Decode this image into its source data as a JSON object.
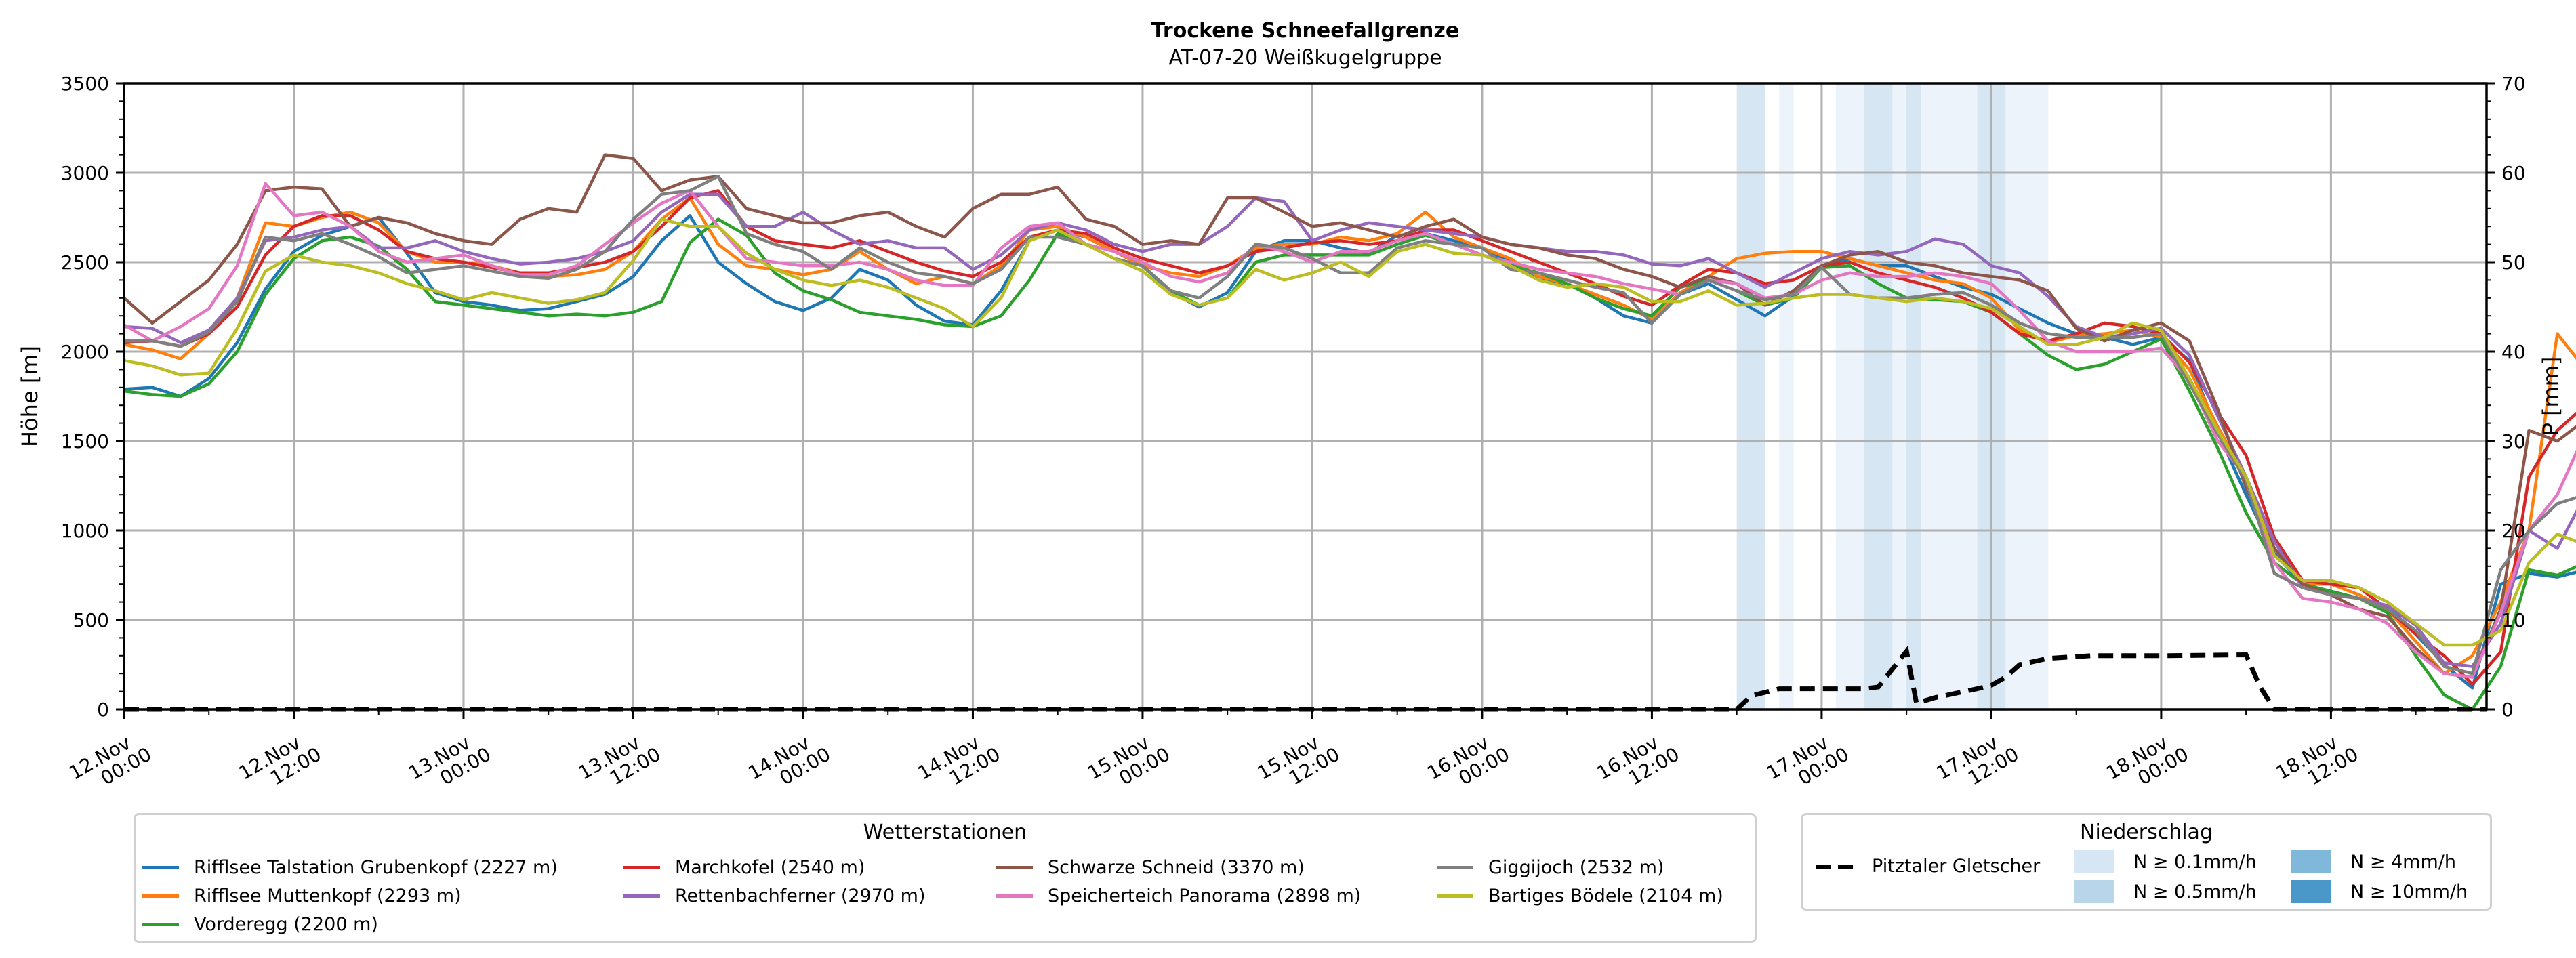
{
  "chart_data": {
    "type": "line",
    "title": "Trockene Schneefallgrenze",
    "subtitle": "AT-07-20 Weißkugelgruppe",
    "ylabel": "Höhe [m]",
    "y2label": "P [mm]",
    "ylim": [
      0,
      3500
    ],
    "y2lim": [
      0,
      70
    ],
    "yticks": [
      0,
      500,
      1000,
      1500,
      2000,
      2500,
      3000,
      3500
    ],
    "y2ticks": [
      0,
      10,
      20,
      30,
      40,
      50,
      60,
      70
    ],
    "grid": true,
    "x_unit": "hours since 12.Nov 00:00",
    "xlim": [
      0,
      167
    ],
    "xticks": [
      {
        "t": 0,
        "line1": "12.Nov",
        "line2": "00:00"
      },
      {
        "t": 12,
        "line1": "12.Nov",
        "line2": "12:00"
      },
      {
        "t": 24,
        "line1": "13.Nov",
        "line2": "00:00"
      },
      {
        "t": 36,
        "line1": "13.Nov",
        "line2": "12:00"
      },
      {
        "t": 48,
        "line1": "14.Nov",
        "line2": "00:00"
      },
      {
        "t": 60,
        "line1": "14.Nov",
        "line2": "12:00"
      },
      {
        "t": 72,
        "line1": "15.Nov",
        "line2": "00:00"
      },
      {
        "t": 84,
        "line1": "15.Nov",
        "line2": "12:00"
      },
      {
        "t": 96,
        "line1": "16.Nov",
        "line2": "00:00"
      },
      {
        "t": 108,
        "line1": "16.Nov",
        "line2": "12:00"
      },
      {
        "t": 120,
        "line1": "17.Nov",
        "line2": "00:00"
      },
      {
        "t": 132,
        "line1": "17.Nov",
        "line2": "12:00"
      },
      {
        "t": 144,
        "line1": "18.Nov",
        "line2": "00:00"
      },
      {
        "t": 156,
        "line1": "18.Nov",
        "line2": "12:00"
      }
    ],
    "x_step_hours": 2,
    "series": [
      {
        "name": "Rifflsee Talstation Grubenkopf (2227 m)",
        "color": "#1f77b4",
        "values": [
          1790,
          1800,
          1750,
          1850,
          2050,
          2350,
          2560,
          2650,
          2700,
          2750,
          2550,
          2330,
          2280,
          2260,
          2230,
          2240,
          2280,
          2320,
          2420,
          2620,
          2760,
          2500,
          2380,
          2280,
          2230,
          2300,
          2460,
          2400,
          2260,
          2170,
          2150,
          2340,
          2620,
          2680,
          2640,
          2560,
          2480,
          2330,
          2250,
          2330,
          2560,
          2620,
          2620,
          2580,
          2550,
          2650,
          2660,
          2620,
          2580,
          2500,
          2400,
          2380,
          2300,
          2200,
          2160,
          2320,
          2380,
          2290,
          2200,
          2310,
          2470,
          2520,
          2480,
          2480,
          2420,
          2360,
          2320,
          2240,
          2160,
          2100,
          2080,
          2040,
          2080,
          1950,
          1550,
          1200,
          870,
          700,
          660,
          620,
          580,
          420,
          250,
          120,
          700,
          760,
          740,
          780,
          560,
          460,
          440,
          520,
          700,
          850,
          930
        ]
      },
      {
        "name": "Rifflsee Muttenkopf (2293 m)",
        "color": "#ff7f0e",
        "values": [
          2040,
          2010,
          1960,
          2100,
          2300,
          2720,
          2700,
          2750,
          2780,
          2720,
          2560,
          2500,
          2500,
          2480,
          2440,
          2420,
          2430,
          2460,
          2560,
          2740,
          2860,
          2600,
          2480,
          2460,
          2430,
          2460,
          2560,
          2460,
          2380,
          2420,
          2380,
          2480,
          2680,
          2700,
          2640,
          2560,
          2480,
          2440,
          2420,
          2480,
          2580,
          2600,
          2600,
          2640,
          2620,
          2660,
          2780,
          2640,
          2580,
          2520,
          2420,
          2380,
          2320,
          2260,
          2180,
          2330,
          2420,
          2520,
          2550,
          2560,
          2560,
          2520,
          2480,
          2440,
          2400,
          2380,
          2300,
          2120,
          2050,
          2090,
          2100,
          2120,
          2080,
          1900,
          1580,
          1300,
          900,
          700,
          700,
          640,
          560,
          380,
          200,
          300,
          600,
          1000,
          2100,
          1900,
          1150,
          1450,
          750,
          600,
          720,
          850,
          1050
        ]
      },
      {
        "name": "Vorderegg (2200 m)",
        "color": "#2ca02c",
        "values": [
          1780,
          1760,
          1750,
          1820,
          2000,
          2320,
          2520,
          2620,
          2640,
          2590,
          2460,
          2280,
          2260,
          2240,
          2220,
          2200,
          2210,
          2200,
          2220,
          2280,
          2610,
          2740,
          2650,
          2440,
          2340,
          2290,
          2220,
          2200,
          2180,
          2150,
          2140,
          2200,
          2400,
          2660,
          2600,
          2520,
          2480,
          2340,
          2260,
          2300,
          2500,
          2540,
          2540,
          2540,
          2540,
          2600,
          2650,
          2600,
          2540,
          2480,
          2440,
          2380,
          2300,
          2240,
          2200,
          2360,
          2400,
          2340,
          2260,
          2300,
          2470,
          2480,
          2380,
          2300,
          2290,
          2280,
          2220,
          2100,
          1980,
          1900,
          1930,
          2000,
          2070,
          1780,
          1460,
          1100,
          820,
          700,
          660,
          620,
          540,
          300,
          80,
          0,
          240,
          780,
          750,
          820,
          800,
          650,
          500,
          460,
          560,
          660,
          720
        ]
      },
      {
        "name": "Marchkofel (2540 m)",
        "color": "#d62728",
        "values": [
          2050,
          2060,
          2030,
          2100,
          2250,
          2540,
          2700,
          2760,
          2760,
          2680,
          2560,
          2520,
          2500,
          2470,
          2440,
          2440,
          2470,
          2500,
          2560,
          2700,
          2860,
          2900,
          2700,
          2620,
          2600,
          2580,
          2620,
          2560,
          2500,
          2450,
          2420,
          2500,
          2640,
          2680,
          2660,
          2580,
          2520,
          2480,
          2440,
          2480,
          2560,
          2580,
          2610,
          2620,
          2600,
          2620,
          2680,
          2680,
          2620,
          2560,
          2500,
          2440,
          2380,
          2310,
          2260,
          2370,
          2460,
          2440,
          2380,
          2400,
          2480,
          2500,
          2440,
          2400,
          2360,
          2300,
          2220,
          2100,
          2060,
          2100,
          2160,
          2140,
          2100,
          1940,
          1660,
          1420,
          960,
          720,
          700,
          680,
          560,
          420,
          300,
          140,
          320,
          1300,
          1560,
          1700,
          1750,
          1050,
          960,
          760,
          760,
          860,
          940
        ]
      },
      {
        "name": "Rettenbachferner (2970 m)",
        "color": "#9467bd",
        "values": [
          2140,
          2130,
          2050,
          2120,
          2300,
          2620,
          2640,
          2680,
          2700,
          2580,
          2580,
          2620,
          2560,
          2520,
          2490,
          2500,
          2520,
          2560,
          2620,
          2780,
          2880,
          2880,
          2700,
          2700,
          2780,
          2680,
          2600,
          2620,
          2580,
          2580,
          2460,
          2540,
          2680,
          2720,
          2680,
          2600,
          2560,
          2600,
          2600,
          2700,
          2860,
          2840,
          2620,
          2680,
          2720,
          2700,
          2680,
          2660,
          2640,
          2600,
          2580,
          2560,
          2560,
          2540,
          2490,
          2480,
          2520,
          2440,
          2360,
          2440,
          2520,
          2560,
          2540,
          2560,
          2630,
          2600,
          2480,
          2440,
          2310,
          2140,
          2080,
          2100,
          2130,
          1980,
          1640,
          1300,
          940,
          680,
          640,
          620,
          580,
          470,
          260,
          240,
          480,
          1000,
          900,
          1200,
          780,
          740,
          760,
          840,
          880,
          900,
          940
        ]
      },
      {
        "name": "Schwarze Schneid (3370 m)",
        "color": "#8c564b",
        "values": [
          2300,
          2160,
          2280,
          2400,
          2600,
          2900,
          2920,
          2910,
          2700,
          2750,
          2720,
          2660,
          2620,
          2600,
          2740,
          2800,
          2780,
          3100,
          3080,
          2900,
          2960,
          2980,
          2800,
          2760,
          2720,
          2720,
          2760,
          2780,
          2700,
          2640,
          2800,
          2880,
          2880,
          2920,
          2740,
          2700,
          2600,
          2620,
          2600,
          2860,
          2860,
          2780,
          2700,
          2720,
          2680,
          2640,
          2700,
          2740,
          2640,
          2600,
          2580,
          2540,
          2520,
          2460,
          2420,
          2360,
          2420,
          2380,
          2260,
          2340,
          2480,
          2540,
          2560,
          2500,
          2480,
          2440,
          2420,
          2400,
          2340,
          2130,
          2060,
          2120,
          2160,
          2060,
          1680,
          1240,
          900,
          700,
          640,
          560,
          520,
          340,
          200,
          180,
          560,
          1560,
          1500,
          1620,
          1220,
          880,
          720,
          700,
          840,
          920,
          940
        ]
      },
      {
        "name": "Speicherteich Panorama (2898 m)",
        "color": "#e377c2",
        "values": [
          2150,
          2060,
          2140,
          2240,
          2480,
          2940,
          2760,
          2780,
          2700,
          2560,
          2500,
          2520,
          2540,
          2480,
          2430,
          2430,
          2480,
          2600,
          2720,
          2830,
          2900,
          2700,
          2520,
          2500,
          2480,
          2480,
          2500,
          2460,
          2400,
          2370,
          2370,
          2580,
          2700,
          2720,
          2600,
          2560,
          2500,
          2420,
          2390,
          2440,
          2600,
          2560,
          2500,
          2560,
          2560,
          2620,
          2660,
          2600,
          2540,
          2500,
          2460,
          2440,
          2420,
          2380,
          2350,
          2320,
          2400,
          2380,
          2300,
          2320,
          2400,
          2440,
          2420,
          2420,
          2440,
          2420,
          2380,
          2230,
          2060,
          2000,
          2000,
          2000,
          2020,
          1840,
          1500,
          1300,
          820,
          620,
          600,
          560,
          480,
          320,
          200,
          180,
          540,
          1000,
          1200,
          1550,
          1050,
          820,
          840,
          860,
          900,
          920,
          940
        ]
      },
      {
        "name": "Giggijoch (2532 m)",
        "color": "#7f7f7f",
        "values": [
          2060,
          2060,
          2030,
          2110,
          2280,
          2640,
          2620,
          2660,
          2600,
          2530,
          2440,
          2460,
          2480,
          2450,
          2420,
          2410,
          2460,
          2560,
          2740,
          2880,
          2900,
          2980,
          2660,
          2600,
          2560,
          2460,
          2580,
          2500,
          2440,
          2420,
          2380,
          2460,
          2640,
          2640,
          2600,
          2520,
          2480,
          2340,
          2300,
          2420,
          2600,
          2580,
          2520,
          2440,
          2440,
          2580,
          2620,
          2600,
          2580,
          2460,
          2440,
          2400,
          2360,
          2330,
          2160,
          2320,
          2400,
          2340,
          2290,
          2320,
          2470,
          2320,
          2300,
          2300,
          2320,
          2330,
          2260,
          2160,
          2100,
          2080,
          2080,
          2080,
          2100,
          1820,
          1540,
          1280,
          760,
          680,
          640,
          620,
          560,
          440,
          240,
          200,
          780,
          1000,
          1150,
          1200,
          1700,
          900,
          700,
          750,
          800,
          860,
          860
        ]
      },
      {
        "name": "Bartiges Bödele (2104 m)",
        "color": "#bcbd22",
        "values": [
          1950,
          1920,
          1870,
          1880,
          2130,
          2450,
          2540,
          2500,
          2480,
          2440,
          2380,
          2340,
          2290,
          2330,
          2300,
          2270,
          2290,
          2330,
          2510,
          2740,
          2700,
          2700,
          2550,
          2460,
          2400,
          2370,
          2400,
          2360,
          2300,
          2240,
          2140,
          2300,
          2620,
          2680,
          2600,
          2520,
          2450,
          2320,
          2260,
          2300,
          2460,
          2400,
          2440,
          2500,
          2420,
          2560,
          2600,
          2550,
          2540,
          2480,
          2400,
          2360,
          2380,
          2360,
          2280,
          2280,
          2340,
          2260,
          2270,
          2300,
          2320,
          2320,
          2300,
          2280,
          2300,
          2280,
          2240,
          2140,
          2040,
          2040,
          2080,
          2160,
          2120,
          1850,
          1560,
          1300,
          860,
          720,
          720,
          680,
          600,
          480,
          360,
          360,
          440,
          820,
          980,
          920,
          800,
          560,
          560,
          620,
          600,
          600,
          760
        ]
      }
    ],
    "precip_line": {
      "name": "Pitztaler Gletscher",
      "unit": "mm",
      "points": [
        [
          0,
          0
        ],
        [
          114,
          0
        ],
        [
          115,
          1.5
        ],
        [
          117,
          2.3
        ],
        [
          123,
          2.3
        ],
        [
          124,
          2.5
        ],
        [
          125,
          4.5
        ],
        [
          126,
          6.5
        ],
        [
          126.7,
          0.7
        ],
        [
          128,
          1.3
        ],
        [
          131,
          2.3
        ],
        [
          132,
          2.7
        ],
        [
          133,
          3.6
        ],
        [
          134,
          5.0
        ],
        [
          136,
          5.7
        ],
        [
          139,
          6.0
        ],
        [
          144,
          6.0
        ],
        [
          150,
          6.1
        ],
        [
          151,
          2.5
        ],
        [
          152,
          0
        ],
        [
          167,
          0
        ]
      ]
    },
    "precip_bands": [
      {
        "start": 114,
        "end": 115,
        "level": "0.5"
      },
      {
        "start": 115,
        "end": 116,
        "level": "0.5"
      },
      {
        "start": 117,
        "end": 118,
        "level": "0.1"
      },
      {
        "start": 121,
        "end": 122,
        "level": "0.1"
      },
      {
        "start": 122,
        "end": 123,
        "level": "0.1"
      },
      {
        "start": 123,
        "end": 124,
        "level": "0.5"
      },
      {
        "start": 124,
        "end": 125,
        "level": "0.5"
      },
      {
        "start": 125,
        "end": 126,
        "level": "0.1"
      },
      {
        "start": 126,
        "end": 127,
        "level": "0.5"
      },
      {
        "start": 127,
        "end": 128,
        "level": "0.1"
      },
      {
        "start": 128,
        "end": 129,
        "level": "0.1"
      },
      {
        "start": 129,
        "end": 130,
        "level": "0.1"
      },
      {
        "start": 130,
        "end": 131,
        "level": "0.1"
      },
      {
        "start": 131,
        "end": 132,
        "level": "0.5"
      },
      {
        "start": 132,
        "end": 133,
        "level": "0.5"
      },
      {
        "start": 133,
        "end": 134,
        "level": "0.1"
      },
      {
        "start": 134,
        "end": 135,
        "level": "0.1"
      },
      {
        "start": 135,
        "end": 136,
        "level": "0.1"
      }
    ],
    "legends": {
      "stations_title": "Wetterstationen",
      "precip_title": "Niederschlag",
      "precip_items": [
        {
          "label": "N ≥ 0.1mm/h",
          "color": "#d6e6f4"
        },
        {
          "label": "N ≥ 4mm/h",
          "color": "#7fb8da"
        },
        {
          "label": "N ≥ 0.5mm/h",
          "color": "#b9d5ea"
        },
        {
          "label": "N ≥ 10mm/h",
          "color": "#4a98c9"
        }
      ]
    },
    "band_colors": {
      "0.1": "#edf3fa",
      "0.5": "#d7e6f3"
    }
  }
}
